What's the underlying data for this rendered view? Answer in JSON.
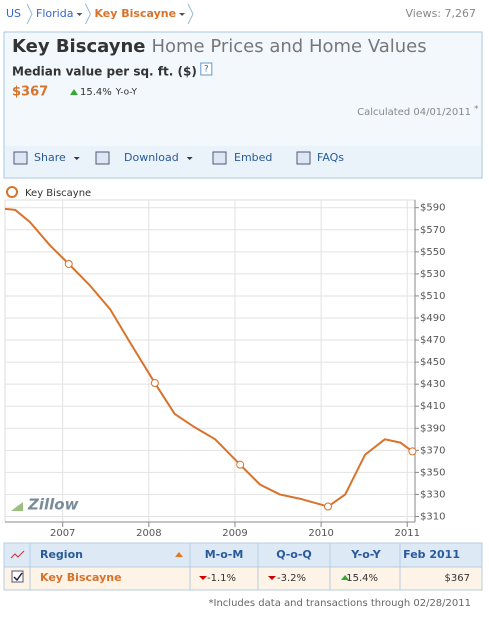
{
  "breadcrumb": [
    "US",
    "Florida",
    "Key Biscayne"
  ],
  "views": "Views: 7,267",
  "header": {
    "title": "Key Biscayne",
    "title_rest": "Home Prices and Home Values",
    "metric": "Median value per sq. ft. ($)",
    "help": "?",
    "value": "$367",
    "change": "15.4%",
    "change_label": "Y-o-Y",
    "calculated": "Calculated 04/01/2011",
    "asterisk": "*"
  },
  "toolbar": [
    "Share",
    "Download",
    "Embed",
    "FAQs"
  ],
  "chart_data": {
    "type": "line",
    "watermark": "Zillow",
    "x": [
      2006.33,
      2006.45,
      2006.62,
      2006.85,
      2007.07,
      2007.31,
      2007.55,
      2007.78,
      2008.07,
      2008.3,
      2008.53,
      2008.77,
      2009.06,
      2009.29,
      2009.52,
      2009.76,
      2010.08,
      2010.28,
      2010.51,
      2010.74,
      2010.92,
      2011.06
    ],
    "series": [
      {
        "name": "Key Biscayne",
        "color": "#d9722a",
        "markers": [
          4,
          8,
          12,
          16,
          21
        ],
        "values": [
          589,
          588,
          577,
          556,
          539,
          520,
          498,
          468,
          431,
          403,
          391,
          380,
          357,
          339,
          330,
          326,
          319,
          330,
          366,
          380,
          377,
          369
        ]
      }
    ],
    "xlim": [
      2006.33,
      2011.09
    ],
    "xticks": [
      2007,
      2008,
      2009,
      2010,
      2011
    ],
    "ylim": [
      305,
      597
    ],
    "yticks": [
      {
        "value": 310,
        "label": "$310"
      },
      {
        "value": 330,
        "label": "$330"
      },
      {
        "value": 350,
        "label": "$350"
      },
      {
        "value": 370,
        "label": "$370"
      },
      {
        "value": 390,
        "label": "$390"
      },
      {
        "value": 410,
        "label": "$410"
      },
      {
        "value": 430,
        "label": "$430"
      },
      {
        "value": 450,
        "label": "$450"
      },
      {
        "value": 470,
        "label": "$470"
      },
      {
        "value": 490,
        "label": "$490"
      },
      {
        "value": 510,
        "label": "$510"
      },
      {
        "value": 530,
        "label": "$530"
      },
      {
        "value": 550,
        "label": "$550"
      },
      {
        "value": 570,
        "label": "$570"
      },
      {
        "value": 590,
        "label": "$590"
      }
    ],
    "grid": true
  },
  "table": {
    "header": [
      "Region",
      "M-o-M",
      "Q-o-Q",
      "Y-o-Y",
      "Feb 2011"
    ],
    "rows": [
      [
        "Key Biscayne",
        "-1.1%",
        "-3.2%",
        "15.4%",
        "$367"
      ]
    ]
  },
  "footnote": "*Includes data and transactions through 02/28/2011"
}
